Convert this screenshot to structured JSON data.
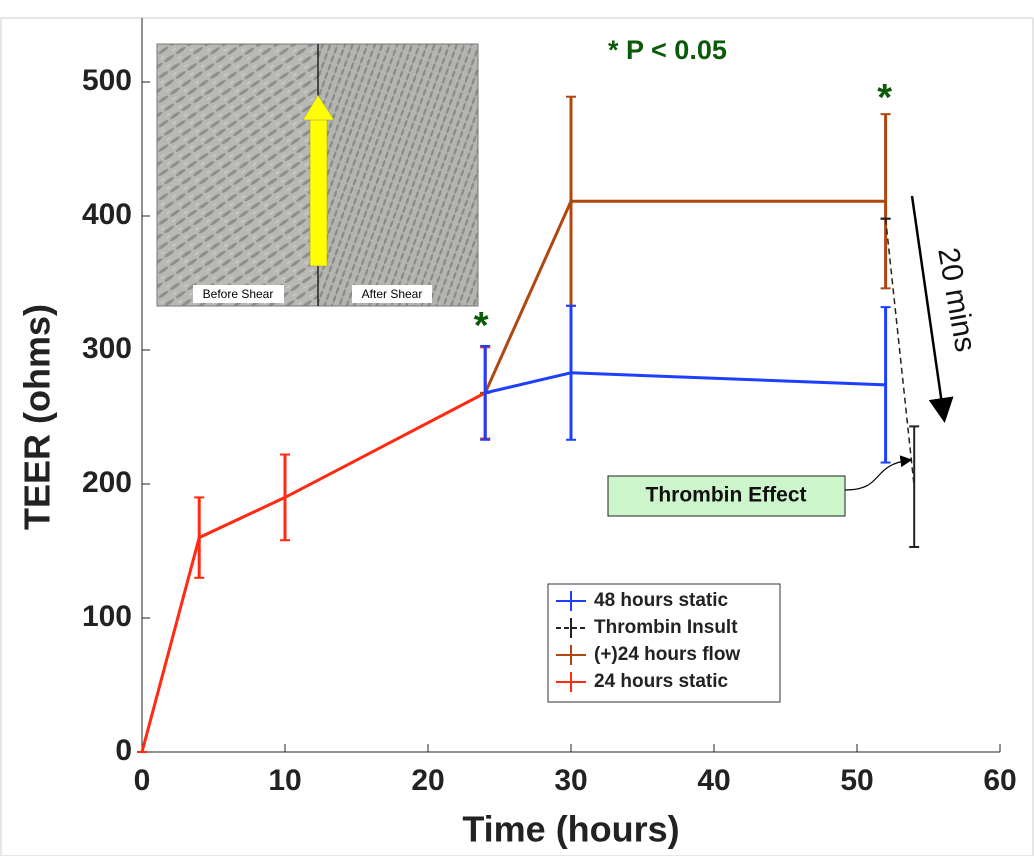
{
  "chart_data": {
    "type": "errorbar",
    "xlabel": "Time (hours)",
    "ylabel": "TEER (ohms)",
    "xlim": [
      0,
      60
    ],
    "ylim": [
      0,
      500
    ],
    "xticks": [
      0,
      10,
      20,
      30,
      40,
      50,
      60
    ],
    "yticks": [
      0,
      100,
      200,
      300,
      400,
      500
    ],
    "legend": "lower-right",
    "series": [
      {
        "name": "48 hours static",
        "color": "#1f3fff",
        "dash": false,
        "x": [
          24,
          30,
          52
        ],
        "values": [
          268,
          283,
          274
        ],
        "errors": [
          35,
          50,
          58
        ]
      },
      {
        "name": "Thrombin Insult",
        "color": "#222222",
        "dash": true,
        "x": [
          52,
          54
        ],
        "values": [
          398,
          198
        ],
        "errors": [
          0,
          45
        ]
      },
      {
        "name": "(+)24 hours flow",
        "color": "#b0470f",
        "dash": false,
        "x": [
          24,
          30,
          52
        ],
        "values": [
          268,
          411,
          411
        ],
        "errors": [
          0,
          78,
          65
        ]
      },
      {
        "name": "24 hours static",
        "color": "#ff2a10",
        "dash": false,
        "x": [
          0,
          4,
          10,
          24
        ],
        "values": [
          0,
          160,
          190,
          268
        ],
        "errors": [
          0,
          30,
          32,
          34
        ]
      }
    ],
    "annotations": [
      "* P < 0.05",
      "*",
      "*",
      "20 mins",
      "Thrombin Effect"
    ],
    "inset": {
      "left_label": "Before Shear",
      "right_label": "After Shear"
    }
  }
}
